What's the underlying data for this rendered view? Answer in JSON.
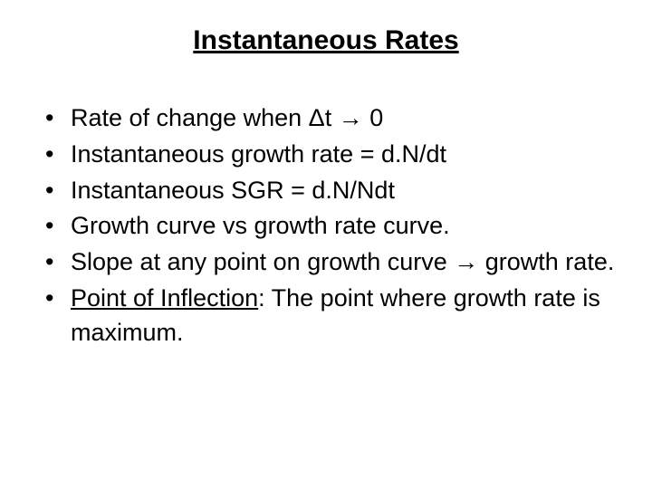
{
  "slide": {
    "title": "Instantaneous Rates",
    "bullets": {
      "b0_pre": "Rate of change when Δt ",
      "b0_arrow": "→",
      "b0_post": " 0",
      "b1": "Instantaneous growth rate = d.N/dt",
      "b2": "Instantaneous SGR = d.N/Ndt",
      "b3": "Growth curve vs growth rate curve.",
      "b4_pre": "Slope at any point on growth curve ",
      "b4_arrow": "→",
      "b4_post": " growth rate.",
      "b5_underlined": "Point of Inflection",
      "b5_rest": ": The point where growth rate is maximum."
    },
    "styling": {
      "background_color": "#ffffff",
      "text_color": "#000000",
      "title_fontsize": 30,
      "body_fontsize": 27,
      "font_family": "Arial"
    }
  }
}
